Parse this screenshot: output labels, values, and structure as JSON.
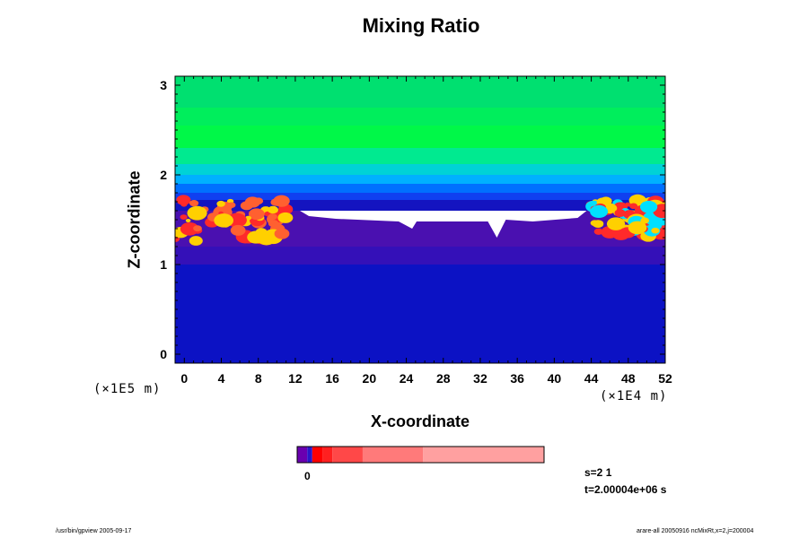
{
  "chart_data": {
    "type": "heatmap",
    "title": "Mixing Ratio",
    "xlabel": "X-coordinate",
    "ylabel": "Z-coordinate",
    "x_unit": "(×1E4 m)",
    "y_unit": "(×1E5 m)",
    "xlim": [
      -1,
      52
    ],
    "ylim": [
      -0.1,
      3.1
    ],
    "x_ticks": [
      "0",
      "4",
      "8",
      "12",
      "16",
      "20",
      "24",
      "28",
      "32",
      "36",
      "40",
      "44",
      "48",
      "52"
    ],
    "y_ticks": [
      "0",
      "1",
      "2",
      "3"
    ],
    "colorbar": {
      "label": "0",
      "colors": [
        "#6a00b0",
        "#2a16c8",
        "#ff0000",
        "#ff2020",
        "#ff4848",
        "#ff7a7a",
        "#ffa0a0"
      ],
      "widths": [
        2,
        1,
        2,
        2,
        6,
        12,
        24
      ]
    },
    "layers": [
      {
        "z": [
          2.75,
          3.1
        ],
        "color": "#00e070"
      },
      {
        "z": [
          2.55,
          2.75
        ],
        "color": "#00ee5c"
      },
      {
        "z": [
          2.3,
          2.55
        ],
        "color": "#00f848"
      },
      {
        "z": [
          2.12,
          2.3
        ],
        "color": "#00ea90"
      },
      {
        "z": [
          2.0,
          2.12
        ],
        "color": "#00d2d6"
      },
      {
        "z": [
          1.9,
          2.0
        ],
        "color": "#00b0ff"
      },
      {
        "z": [
          1.8,
          1.9
        ],
        "color": "#0070ff"
      },
      {
        "z": [
          1.72,
          1.8
        ],
        "color": "#1040f0"
      },
      {
        "z": [
          1.6,
          1.72
        ],
        "color": "#1414c0"
      },
      {
        "z": [
          1.2,
          1.6
        ],
        "color": "#4a10b0"
      },
      {
        "z": [
          1.0,
          1.2
        ],
        "color": "#3410b8"
      },
      {
        "z": [
          -0.1,
          1.0
        ],
        "color": "#0c12c4"
      }
    ],
    "dry_region": {
      "x": [
        12.5,
        43.5
      ],
      "z": [
        1.48,
        1.6
      ],
      "color": "#ffffff"
    },
    "moist_patches": [
      {
        "x": [
          -1,
          11
        ],
        "z": [
          1.25,
          1.72
        ],
        "colors": [
          "#ff2a2a",
          "#ff6030",
          "#ffd000"
        ]
      },
      {
        "x": [
          44,
          52
        ],
        "z": [
          1.3,
          1.72
        ],
        "colors": [
          "#ff2a2a",
          "#ffd000",
          "#00e0ff"
        ]
      }
    ]
  },
  "labels": {
    "step": "s=2 1",
    "time": "t=2.00004e+06 s",
    "footer_left": "/usr/bin/gpview 2005-09-17",
    "footer_right": "arare-all 20050916 ncMixRt,x=2,j=200004"
  },
  "colors": {
    "frame": "#000000",
    "background": "#ffffff"
  }
}
